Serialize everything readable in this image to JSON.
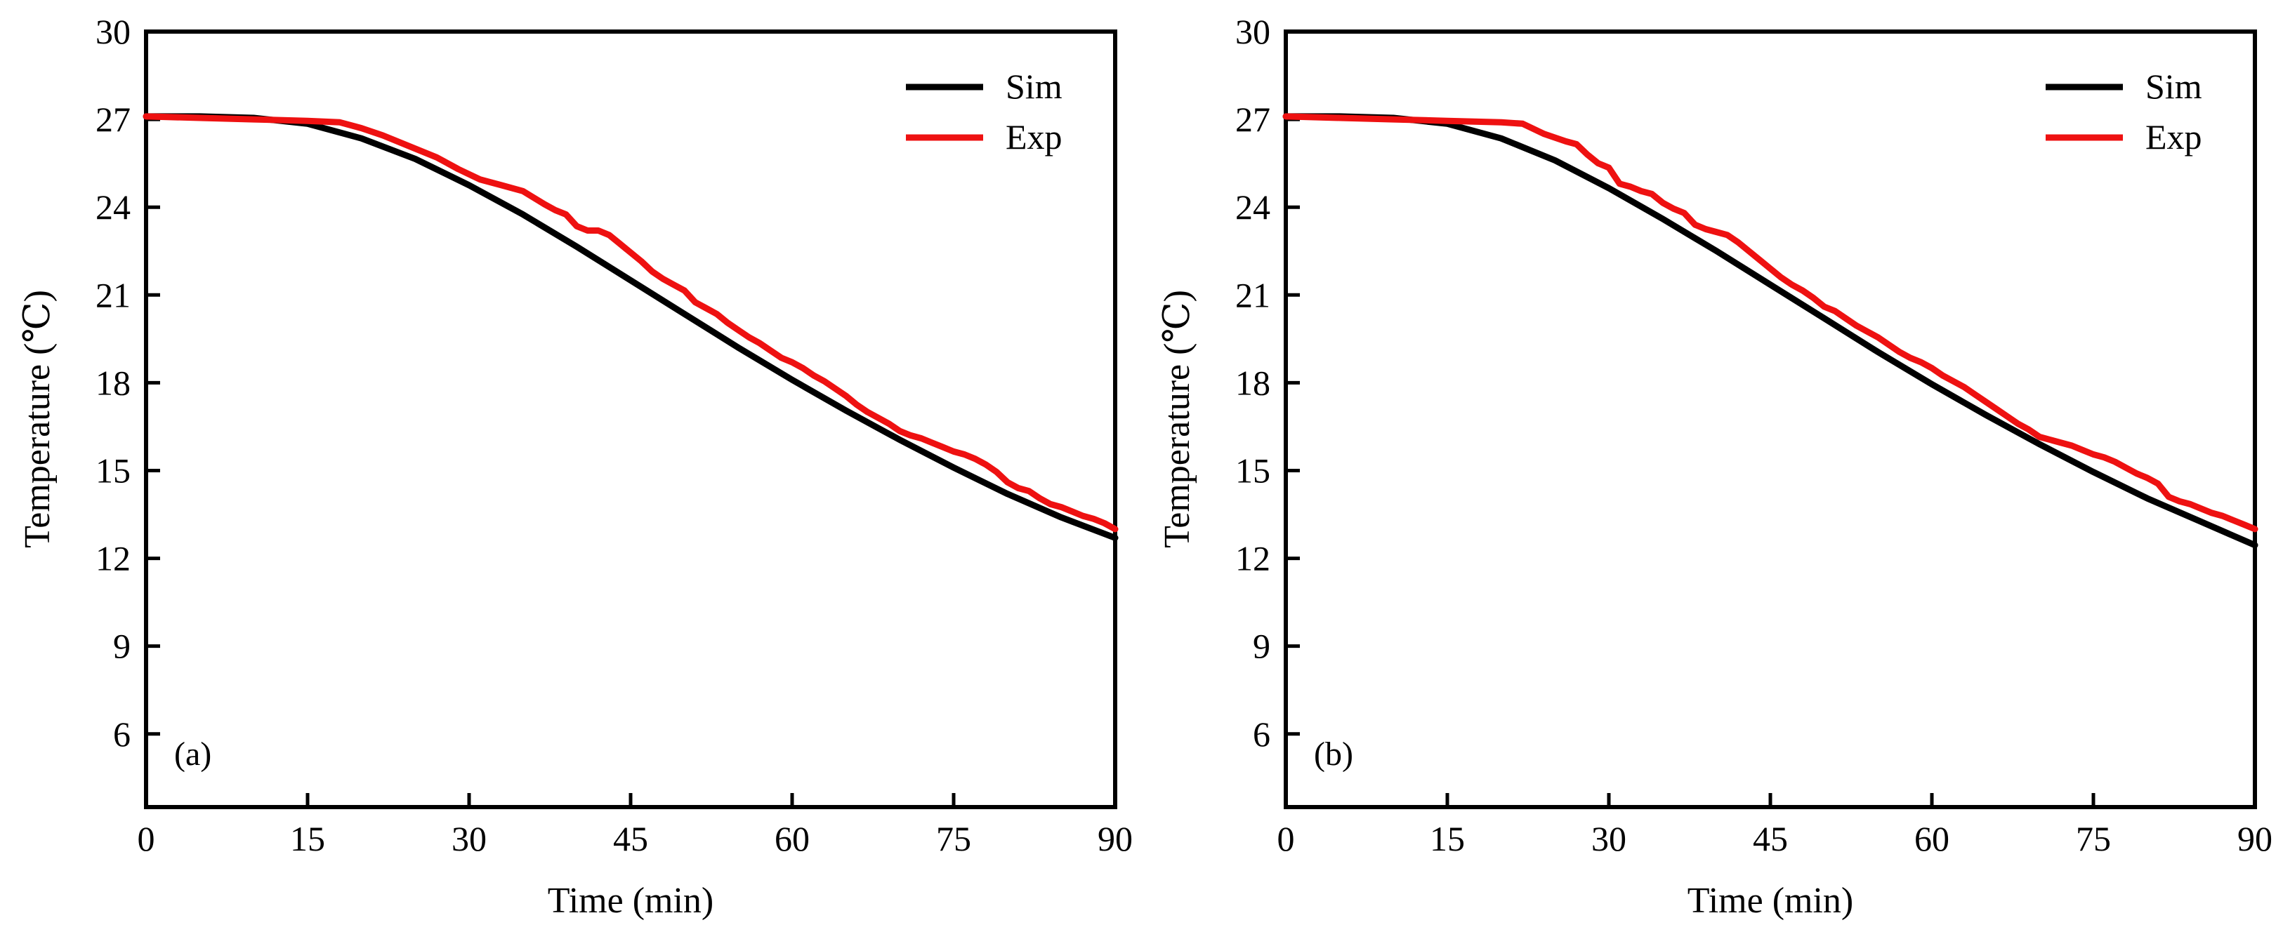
{
  "colors": {
    "sim": "#000000",
    "exp": "#ee1111",
    "axis": "#000000"
  },
  "chart_data": [
    {
      "type": "line",
      "panel_label": "(a)",
      "xlabel": "Time (min)",
      "ylabel": "Temperature (℃)",
      "xlim": [
        0,
        90
      ],
      "ylim": [
        3.5,
        30
      ],
      "xticks": [
        0,
        15,
        30,
        45,
        60,
        75,
        90
      ],
      "yticks": [
        6,
        9,
        12,
        15,
        18,
        21,
        24,
        27,
        30
      ],
      "legend": {
        "position": "top-right",
        "entries": [
          "Sim",
          "Exp"
        ]
      },
      "series": [
        {
          "name": "Sim",
          "color": "#000000",
          "x": [
            0,
            5,
            10,
            15,
            20,
            25,
            30,
            35,
            40,
            45,
            50,
            55,
            60,
            65,
            70,
            75,
            80,
            85,
            90
          ],
          "y": [
            27.1,
            27.1,
            27.05,
            26.85,
            26.35,
            25.65,
            24.75,
            23.75,
            22.65,
            21.5,
            20.35,
            19.2,
            18.1,
            17.05,
            16.05,
            15.1,
            14.2,
            13.4,
            12.7
          ]
        },
        {
          "name": "Exp",
          "color": "#ee1111",
          "x": [
            0,
            5,
            10,
            15,
            18,
            20,
            22,
            25,
            27,
            29,
            31,
            33,
            35,
            37,
            38,
            39,
            40,
            41,
            42,
            43,
            44,
            45,
            46,
            47,
            48,
            49,
            50,
            51,
            52,
            53,
            54,
            55,
            56,
            57,
            58,
            59,
            60,
            61,
            62,
            63,
            64,
            65,
            66,
            67,
            68,
            69,
            70,
            71,
            72,
            73,
            74,
            75,
            76,
            77,
            78,
            79,
            80,
            81,
            82,
            83,
            84,
            85,
            86,
            87,
            88,
            89,
            90
          ],
          "y": [
            27.1,
            27.05,
            27.0,
            26.95,
            26.9,
            26.7,
            26.45,
            26.0,
            25.7,
            25.3,
            24.95,
            24.75,
            24.55,
            24.1,
            23.9,
            23.75,
            23.35,
            23.2,
            23.2,
            23.05,
            22.75,
            22.45,
            22.15,
            21.8,
            21.55,
            21.35,
            21.15,
            20.75,
            20.55,
            20.35,
            20.05,
            19.8,
            19.55,
            19.35,
            19.1,
            18.85,
            18.7,
            18.5,
            18.25,
            18.05,
            17.8,
            17.55,
            17.25,
            17.0,
            16.8,
            16.6,
            16.35,
            16.2,
            16.1,
            15.95,
            15.8,
            15.65,
            15.55,
            15.4,
            15.2,
            14.95,
            14.6,
            14.4,
            14.3,
            14.05,
            13.85,
            13.75,
            13.6,
            13.45,
            13.35,
            13.2,
            13.0
          ]
        }
      ]
    },
    {
      "type": "line",
      "panel_label": "(b)",
      "xlabel": "Time (min)",
      "ylabel": "Temperature (℃)",
      "xlim": [
        0,
        90
      ],
      "ylim": [
        3.5,
        30
      ],
      "xticks": [
        0,
        15,
        30,
        45,
        60,
        75,
        90
      ],
      "yticks": [
        6,
        9,
        12,
        15,
        18,
        21,
        24,
        27,
        30
      ],
      "legend": {
        "position": "top-right",
        "entries": [
          "Sim",
          "Exp"
        ]
      },
      "series": [
        {
          "name": "Sim",
          "color": "#000000",
          "x": [
            0,
            5,
            10,
            15,
            20,
            25,
            30,
            35,
            40,
            45,
            50,
            55,
            60,
            65,
            70,
            75,
            80,
            85,
            90
          ],
          "y": [
            27.1,
            27.1,
            27.05,
            26.85,
            26.35,
            25.6,
            24.65,
            23.6,
            22.5,
            21.35,
            20.2,
            19.05,
            17.95,
            16.9,
            15.9,
            14.95,
            14.05,
            13.25,
            12.45
          ]
        },
        {
          "name": "Exp",
          "color": "#ee1111",
          "x": [
            0,
            5,
            10,
            15,
            20,
            22,
            24,
            26,
            27,
            28,
            29,
            30,
            31,
            32,
            33,
            34,
            35,
            36,
            37,
            38,
            39,
            40,
            41,
            42,
            43,
            44,
            45,
            46,
            47,
            48,
            49,
            50,
            51,
            52,
            53,
            54,
            55,
            56,
            57,
            58,
            59,
            60,
            61,
            62,
            63,
            64,
            65,
            66,
            67,
            68,
            69,
            70,
            71,
            72,
            73,
            74,
            75,
            76,
            77,
            78,
            79,
            80,
            81,
            82,
            83,
            84,
            85,
            86,
            87,
            88,
            89,
            90
          ],
          "y": [
            27.1,
            27.05,
            27.0,
            26.95,
            26.9,
            26.85,
            26.5,
            26.25,
            26.15,
            25.8,
            25.5,
            25.35,
            24.8,
            24.7,
            24.55,
            24.45,
            24.15,
            23.95,
            23.8,
            23.4,
            23.25,
            23.15,
            23.05,
            22.8,
            22.5,
            22.2,
            21.9,
            21.6,
            21.35,
            21.15,
            20.9,
            20.6,
            20.45,
            20.2,
            19.95,
            19.75,
            19.55,
            19.3,
            19.05,
            18.85,
            18.7,
            18.5,
            18.25,
            18.05,
            17.85,
            17.6,
            17.35,
            17.1,
            16.85,
            16.6,
            16.4,
            16.15,
            16.05,
            15.95,
            15.85,
            15.7,
            15.55,
            15.45,
            15.3,
            15.1,
            14.9,
            14.75,
            14.55,
            14.1,
            13.95,
            13.85,
            13.7,
            13.55,
            13.45,
            13.3,
            13.15,
            13.0
          ]
        }
      ]
    }
  ]
}
